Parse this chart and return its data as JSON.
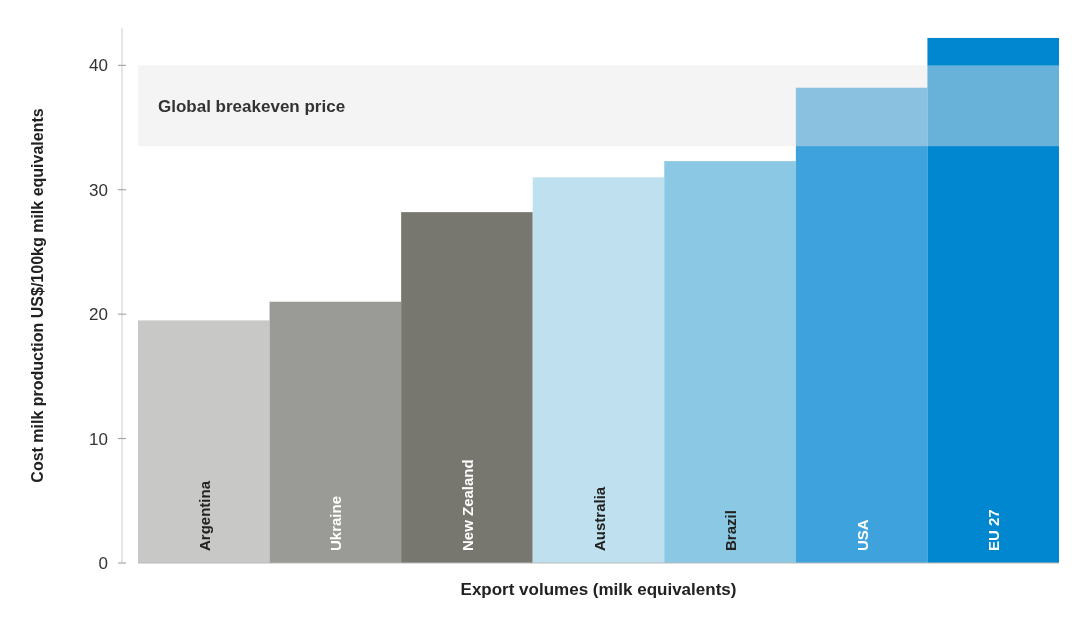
{
  "chart_data": {
    "type": "bar",
    "xlabel": "Export volumes (milk equivalents)",
    "ylabel": "Cost milk production US$/100kg milk equivalents",
    "categories": [
      "Argentina",
      "Ukraine",
      "New Zealand",
      "Australia",
      "Brazil",
      "USA",
      "EU 27"
    ],
    "values": [
      19.5,
      21,
      28.2,
      31,
      32.3,
      38.2,
      42.2
    ],
    "colors": [
      "#c8c8c6",
      "#9a9a96",
      "#77776f",
      "#bfe0ee",
      "#8ac8e4",
      "#3ea3dc",
      "#0087d0"
    ],
    "ylim": [
      0,
      43
    ],
    "yticks": [
      0,
      10,
      20,
      30,
      40
    ],
    "bands": [
      {
        "axis": "y",
        "from": 33.5,
        "to": 40,
        "label": "Global breakeven price",
        "color": "#e6e6e6"
      }
    ]
  }
}
